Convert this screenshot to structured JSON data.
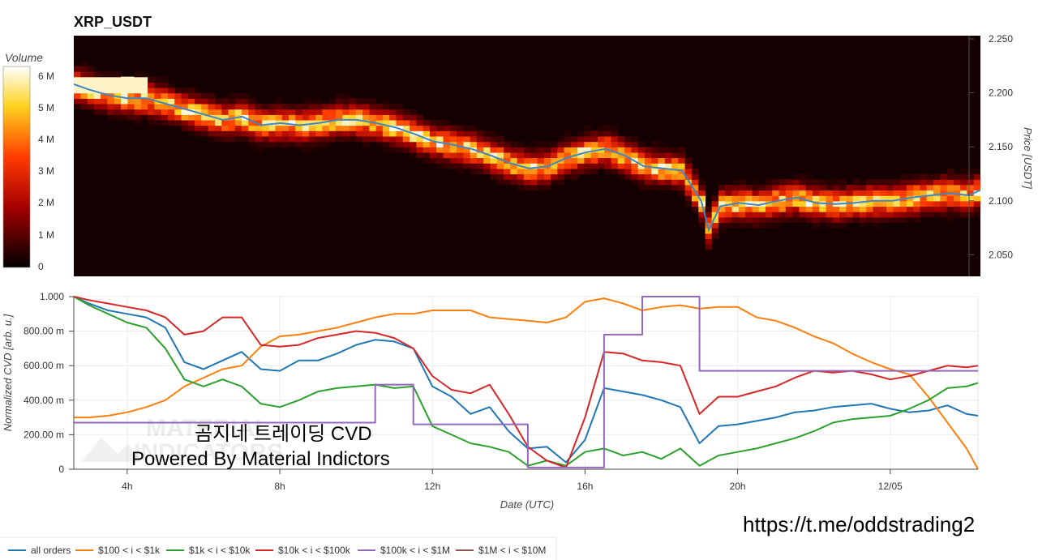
{
  "title": "XRP_USDT",
  "colorbar": {
    "label": "Volume",
    "ticks": [
      "6 M",
      "5 M",
      "4 M",
      "3 M",
      "2 M",
      "1 M",
      "0"
    ],
    "tick_values": [
      6,
      5,
      4,
      3,
      2,
      1,
      0
    ]
  },
  "top_panel": {
    "ylabel": "Price [USDT]",
    "yticks": [
      "2.250",
      "2.200",
      "2.150",
      "2.100",
      "2.050"
    ],
    "ytick_values": [
      2.25,
      2.2,
      2.15,
      2.1,
      2.05
    ],
    "price_line_color": "#3f87c4"
  },
  "bottom_panel": {
    "ylabel": "Normalized CVD [arb. u.]",
    "xlabel": "Date (UTC)",
    "yticks": [
      "1.000",
      "800.00 m",
      "600.00 m",
      "400.00 m",
      "200.00 m",
      "0"
    ],
    "ytick_values": [
      1.0,
      0.8,
      0.6,
      0.4,
      0.2,
      0.0
    ],
    "xticks": [
      "4h",
      "8h",
      "12h",
      "16h",
      "20h",
      "12/05"
    ],
    "xtick_hours": [
      4,
      8,
      12,
      16,
      20,
      24
    ]
  },
  "overlay": {
    "line1": "곰지네 트레이딩 CVD",
    "line2": "Powered By Material Indictors",
    "watermark1": "MATERIAL",
    "watermark2": "INDICATORS"
  },
  "url_text": "https://t.me/oddstrading2",
  "legend": [
    {
      "name": "all orders",
      "color": "#1f77b4"
    },
    {
      "name": "$100 < i < $1k",
      "color": "#ff7f0e"
    },
    {
      "name": "$1k < i < $10k",
      "color": "#2ca02c"
    },
    {
      "name": "$10k < i < $100k",
      "color": "#d62728"
    },
    {
      "name": "$100k < i < $1M",
      "color": "#9467bd"
    },
    {
      "name": "$1M < i < $10M",
      "color": "#8c564b"
    }
  ],
  "chart_data": [
    {
      "type": "heatmap",
      "title": "XRP_USDT",
      "x_hours_range": [
        2.6,
        26.3
      ],
      "ylim": [
        2.03,
        2.253
      ],
      "ylabel": "Price [USDT]",
      "colorbar_label": "Volume",
      "colorbar_range": [
        0,
        6.5
      ],
      "price_series": {
        "x_hours": [
          2.6,
          3.0,
          3.5,
          4.0,
          4.5,
          5.0,
          5.5,
          6.0,
          6.5,
          7.0,
          7.5,
          8.0,
          8.5,
          9.0,
          9.5,
          10.0,
          10.5,
          11.0,
          11.5,
          12.0,
          12.5,
          13.0,
          13.5,
          14.0,
          14.5,
          15.0,
          15.5,
          16.0,
          16.5,
          17.0,
          17.5,
          18.0,
          18.5,
          19.0,
          19.2,
          19.5,
          20.0,
          20.5,
          21.0,
          21.5,
          22.0,
          22.5,
          23.0,
          23.5,
          24.0,
          24.5,
          25.0,
          25.5,
          26.0,
          26.3
        ],
        "price": [
          2.208,
          2.203,
          2.198,
          2.195,
          2.195,
          2.19,
          2.185,
          2.18,
          2.175,
          2.178,
          2.17,
          2.172,
          2.17,
          2.172,
          2.175,
          2.175,
          2.172,
          2.168,
          2.162,
          2.155,
          2.152,
          2.148,
          2.142,
          2.135,
          2.13,
          2.132,
          2.14,
          2.145,
          2.148,
          2.142,
          2.132,
          2.13,
          2.128,
          2.1,
          2.073,
          2.095,
          2.098,
          2.096,
          2.1,
          2.103,
          2.098,
          2.097,
          2.098,
          2.1,
          2.1,
          2.103,
          2.105,
          2.107,
          2.105,
          2.11
        ]
      }
    },
    {
      "type": "line",
      "xlabel": "Date (UTC)",
      "ylabel": "Normalized CVD [arb. u.]",
      "ylim": [
        0,
        1.0
      ],
      "x_hours": [
        2.6,
        3.0,
        3.5,
        4.0,
        4.5,
        5.0,
        5.5,
        6.0,
        6.5,
        7.0,
        7.5,
        8.0,
        8.5,
        9.0,
        9.5,
        10.0,
        10.5,
        11.0,
        11.5,
        12.0,
        12.5,
        13.0,
        13.5,
        14.0,
        14.5,
        15.0,
        15.5,
        16.0,
        16.5,
        17.0,
        17.5,
        18.0,
        18.5,
        19.0,
        19.5,
        20.0,
        20.5,
        21.0,
        21.5,
        22.0,
        22.5,
        23.0,
        23.5,
        24.0,
        24.5,
        25.0,
        25.5,
        26.0,
        26.3
      ],
      "series": [
        {
          "name": "all orders",
          "values": [
            1.0,
            0.96,
            0.92,
            0.9,
            0.88,
            0.82,
            0.62,
            0.58,
            0.63,
            0.68,
            0.58,
            0.57,
            0.63,
            0.63,
            0.67,
            0.72,
            0.75,
            0.74,
            0.7,
            0.48,
            0.42,
            0.32,
            0.36,
            0.22,
            0.12,
            0.13,
            0.04,
            0.17,
            0.47,
            0.45,
            0.43,
            0.4,
            0.36,
            0.15,
            0.25,
            0.26,
            0.28,
            0.3,
            0.33,
            0.34,
            0.36,
            0.37,
            0.38,
            0.35,
            0.33,
            0.34,
            0.37,
            0.32,
            0.31
          ]
        },
        {
          "name": "$100 < i < $1k",
          "values": [
            0.3,
            0.3,
            0.31,
            0.33,
            0.36,
            0.4,
            0.48,
            0.53,
            0.58,
            0.6,
            0.71,
            0.77,
            0.78,
            0.8,
            0.82,
            0.85,
            0.88,
            0.9,
            0.9,
            0.92,
            0.92,
            0.92,
            0.88,
            0.87,
            0.86,
            0.85,
            0.88,
            0.97,
            0.99,
            0.96,
            0.92,
            0.94,
            0.95,
            0.93,
            0.94,
            0.94,
            0.88,
            0.86,
            0.82,
            0.77,
            0.73,
            0.67,
            0.62,
            0.58,
            0.55,
            0.42,
            0.27,
            0.12,
            0.0
          ]
        },
        {
          "name": "$1k < i < $10k",
          "values": [
            1.0,
            0.95,
            0.9,
            0.85,
            0.82,
            0.7,
            0.52,
            0.48,
            0.52,
            0.48,
            0.38,
            0.36,
            0.4,
            0.45,
            0.47,
            0.48,
            0.49,
            0.47,
            0.48,
            0.25,
            0.2,
            0.15,
            0.13,
            0.1,
            0.02,
            0.05,
            0.02,
            0.1,
            0.12,
            0.08,
            0.1,
            0.06,
            0.12,
            0.02,
            0.08,
            0.1,
            0.12,
            0.15,
            0.18,
            0.22,
            0.27,
            0.29,
            0.3,
            0.31,
            0.35,
            0.4,
            0.47,
            0.48,
            0.5
          ]
        },
        {
          "name": "$10k < i < $100k",
          "values": [
            1.0,
            0.98,
            0.96,
            0.94,
            0.92,
            0.88,
            0.78,
            0.8,
            0.88,
            0.88,
            0.72,
            0.71,
            0.72,
            0.76,
            0.78,
            0.8,
            0.79,
            0.76,
            0.7,
            0.54,
            0.46,
            0.44,
            0.49,
            0.32,
            0.13,
            0.05,
            0.01,
            0.3,
            0.68,
            0.67,
            0.63,
            0.62,
            0.6,
            0.32,
            0.42,
            0.42,
            0.45,
            0.48,
            0.53,
            0.57,
            0.56,
            0.57,
            0.55,
            0.52,
            0.54,
            0.57,
            0.6,
            0.59,
            0.6
          ]
        },
        {
          "name": "$100k < i < $1M",
          "values": [
            0.27,
            0.27,
            0.27,
            0.27,
            0.27,
            0.27,
            0.27,
            0.27,
            0.27,
            0.27,
            0.27,
            0.27,
            0.27,
            0.27,
            0.27,
            0.27,
            0.49,
            0.49,
            0.26,
            0.26,
            0.26,
            0.26,
            0.26,
            0.26,
            0.01,
            0.01,
            0.01,
            0.01,
            0.78,
            0.78,
            1.0,
            1.0,
            1.0,
            0.57,
            0.57,
            0.57,
            0.57,
            0.57,
            0.57,
            0.57,
            0.57,
            0.57,
            0.57,
            0.57,
            0.57,
            0.57,
            0.57,
            0.57,
            0.57
          ]
        },
        {
          "name": "$1M < i < $10M",
          "values": []
        }
      ]
    }
  ]
}
